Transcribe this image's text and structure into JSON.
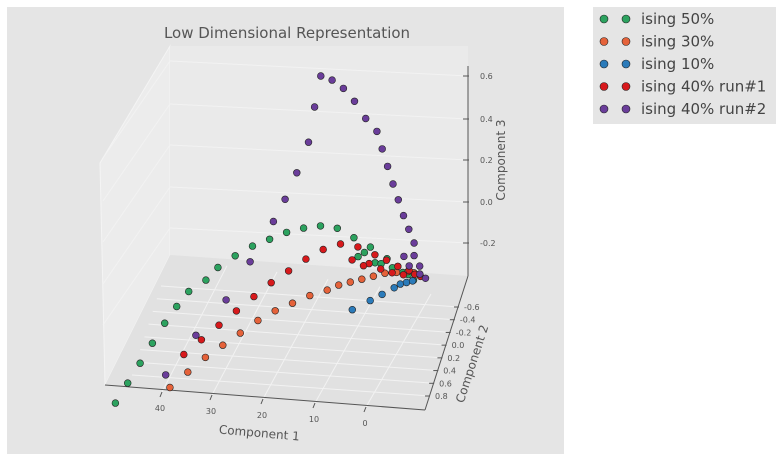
{
  "chart_data": {
    "type": "scatter",
    "projection": "3d",
    "title": "Low Dimensional Representation",
    "xlabel": "Component 1",
    "ylabel": "Component 2",
    "zlabel": "Component 3",
    "xticks": [
      "40",
      "30",
      "20",
      "10",
      "0"
    ],
    "yticks": [
      "-0.6",
      "-0.4",
      "-0.2",
      "0.0",
      "0.2",
      "0.4",
      "0.6",
      "0.8"
    ],
    "zticks": [
      "0.6",
      "0.4",
      "0.2",
      "0.0",
      "-0.2"
    ],
    "xlim": [
      -8,
      50
    ],
    "ylim": [
      -0.7,
      0.85
    ],
    "zlim": [
      -0.35,
      0.65
    ],
    "colors": {
      "pane": "#e5e5e5",
      "axis": "#555555",
      "marker_edge": "#222222"
    },
    "series": [
      {
        "name": "ising 50%",
        "color": "#2ca25f",
        "points": [
          [
            47,
            0.55,
            -0.82
          ],
          [
            45,
            0.45,
            -0.74
          ],
          [
            43,
            0.35,
            -0.66
          ],
          [
            41,
            0.25,
            -0.58
          ],
          [
            39,
            0.15,
            -0.5
          ],
          [
            37,
            0.08,
            -0.43
          ],
          [
            35,
            0.0,
            -0.37
          ],
          [
            32,
            -0.05,
            -0.32
          ],
          [
            30,
            -0.12,
            -0.27
          ],
          [
            27,
            -0.18,
            -0.22
          ],
          [
            24,
            -0.24,
            -0.18
          ],
          [
            21,
            -0.28,
            -0.15
          ],
          [
            18,
            -0.32,
            -0.12
          ],
          [
            15,
            -0.35,
            -0.1
          ],
          [
            12,
            -0.38,
            -0.09
          ],
          [
            9,
            -0.4,
            -0.1
          ],
          [
            6,
            -0.4,
            -0.14
          ],
          [
            3,
            -0.4,
            -0.18
          ],
          [
            0,
            -0.4,
            -0.23
          ],
          [
            -2,
            -0.38,
            -0.26
          ],
          [
            -4,
            -0.35,
            -0.29
          ],
          [
            -5,
            -0.32,
            -0.31
          ],
          [
            5,
            -0.3,
            -0.21
          ],
          [
            4,
            -0.36,
            -0.2
          ],
          [
            2,
            -0.33,
            -0.24
          ],
          [
            -1,
            -0.39,
            -0.27
          ],
          [
            1,
            -0.37,
            -0.25
          ],
          [
            -3,
            -0.34,
            -0.28
          ]
        ]
      },
      {
        "name": "ising 30%",
        "color": "#e5623a",
        "points": [
          [
            37,
            0.6,
            -0.72
          ],
          [
            34,
            0.5,
            -0.66
          ],
          [
            31,
            0.42,
            -0.6
          ],
          [
            28,
            0.35,
            -0.55
          ],
          [
            25,
            0.28,
            -0.5
          ],
          [
            22,
            0.2,
            -0.45
          ],
          [
            19,
            0.14,
            -0.41
          ],
          [
            16,
            0.08,
            -0.38
          ],
          [
            13,
            0.02,
            -0.35
          ],
          [
            10,
            -0.04,
            -0.33
          ],
          [
            8,
            -0.08,
            -0.31
          ],
          [
            6,
            -0.12,
            -0.3
          ],
          [
            4,
            -0.16,
            -0.29
          ],
          [
            2,
            -0.2,
            -0.28
          ],
          [
            0,
            -0.24,
            -0.27
          ],
          [
            -2,
            -0.28,
            -0.27
          ],
          [
            -4,
            -0.32,
            -0.27
          ],
          [
            -5,
            -0.35,
            -0.28
          ],
          [
            -6,
            -0.38,
            -0.29
          ]
        ]
      },
      {
        "name": "ising 10%",
        "color": "#2b7bba",
        "points": [
          [
            5,
            0.15,
            -0.38
          ],
          [
            2,
            0.05,
            -0.35
          ],
          [
            0,
            -0.02,
            -0.33
          ],
          [
            -2,
            -0.1,
            -0.31
          ],
          [
            -3,
            -0.15,
            -0.3
          ],
          [
            -4,
            -0.2,
            -0.3
          ],
          [
            -5,
            -0.25,
            -0.3
          ]
        ]
      },
      {
        "name": "ising 40% run#1",
        "color": "#d7191c",
        "points": [
          [
            35,
            0.38,
            -0.6
          ],
          [
            32,
            0.3,
            -0.54
          ],
          [
            29,
            0.22,
            -0.48
          ],
          [
            26,
            0.15,
            -0.42
          ],
          [
            23,
            0.08,
            -0.36
          ],
          [
            20,
            0.02,
            -0.3
          ],
          [
            17,
            -0.04,
            -0.25
          ],
          [
            14,
            -0.1,
            -0.2
          ],
          [
            11,
            -0.16,
            -0.16
          ],
          [
            8,
            -0.22,
            -0.14
          ],
          [
            5,
            -0.28,
            -0.16
          ],
          [
            2,
            -0.32,
            -0.2
          ],
          [
            0,
            -0.36,
            -0.23
          ],
          [
            -2,
            -0.38,
            -0.26
          ],
          [
            -4,
            -0.4,
            -0.28
          ],
          [
            -5,
            -0.42,
            -0.3
          ],
          [
            -6,
            -0.43,
            -0.31
          ],
          [
            3,
            -0.3,
            -0.24
          ],
          [
            1,
            -0.34,
            -0.27
          ],
          [
            -1,
            -0.37,
            -0.29
          ],
          [
            -3,
            -0.39,
            -0.3
          ],
          [
            6,
            -0.26,
            -0.22
          ],
          [
            4,
            -0.29,
            -0.25
          ]
        ]
      },
      {
        "name": "ising 40% run#2",
        "color": "#6a3d9a",
        "points": [
          [
            38,
            0.5,
            -0.68
          ],
          [
            33,
            0.3,
            -0.52
          ],
          [
            28,
            0.1,
            -0.38
          ],
          [
            24,
            -0.05,
            -0.22
          ],
          [
            20,
            -0.15,
            -0.04
          ],
          [
            18,
            -0.2,
            0.06
          ],
          [
            16,
            -0.25,
            0.18
          ],
          [
            14,
            -0.3,
            0.32
          ],
          [
            13,
            -0.35,
            0.48
          ],
          [
            12,
            -0.4,
            0.62
          ],
          [
            10,
            -0.42,
            0.6
          ],
          [
            8,
            -0.44,
            0.56
          ],
          [
            6,
            -0.45,
            0.5
          ],
          [
            4,
            -0.46,
            0.42
          ],
          [
            2,
            -0.47,
            0.36
          ],
          [
            1,
            -0.46,
            0.28
          ],
          [
            0,
            -0.45,
            0.2
          ],
          [
            -1,
            -0.44,
            0.12
          ],
          [
            -2,
            -0.42,
            0.05
          ],
          [
            -3,
            -0.4,
            -0.02
          ],
          [
            -4,
            -0.38,
            -0.08
          ],
          [
            -5,
            -0.36,
            -0.14
          ],
          [
            -5,
            -0.36,
            -0.2
          ],
          [
            -6,
            -0.37,
            -0.25
          ],
          [
            -6,
            -0.38,
            -0.29
          ],
          [
            -7,
            -0.39,
            -0.31
          ],
          [
            -4,
            -0.41,
            -0.26
          ],
          [
            -3,
            -0.43,
            -0.22
          ]
        ]
      }
    ]
  }
}
